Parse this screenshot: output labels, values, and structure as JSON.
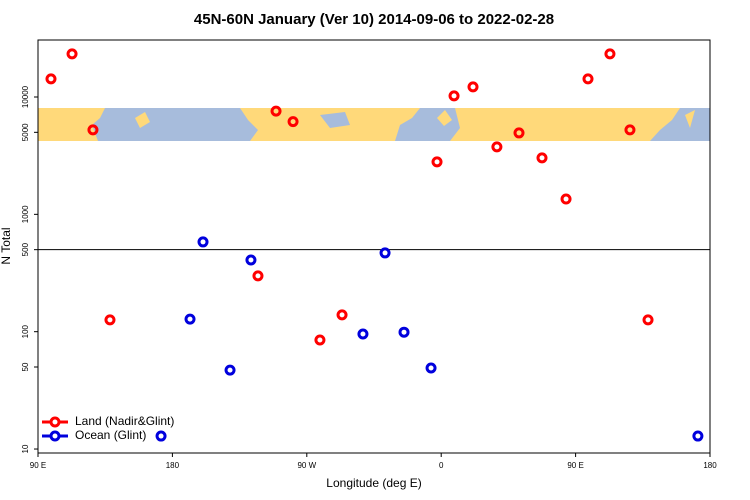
{
  "chart_data": {
    "type": "scatter",
    "title": "45N-60N January (Ver 10)   2014-09-06 to 2022-02-28",
    "x_label": "Longitude (deg E)",
    "y_label": "N Total",
    "xlim": [
      90,
      540
    ],
    "xticks": [
      {
        "value": 90,
        "label": "90 E"
      },
      {
        "value": 180,
        "label": "180"
      },
      {
        "value": 270,
        "label": "90 W"
      },
      {
        "value": 360,
        "label": "0"
      },
      {
        "value": 450,
        "label": "90 E"
      },
      {
        "value": 540,
        "label": "180"
      }
    ],
    "ylim": [
      9.25,
      30600
    ],
    "yticks": [
      10,
      50,
      100,
      500,
      1000,
      5000,
      10000
    ],
    "y_log": true,
    "hline": 500,
    "legend": "bottom-left",
    "series": [
      {
        "name": "Land (Nadir&Glint)",
        "color": "#ff0000",
        "x": [
          98.7,
          112.8,
          126.8,
          138.2,
          249.4,
          260.8,
          237.3,
          278.8,
          293.6,
          357.2,
          368.6,
          381.3,
          397.3,
          412.1,
          427.5,
          443.6,
          458.3,
          473.0,
          486.4,
          498.5
        ],
        "values": [
          14260,
          23300,
          5250,
          126,
          7580,
          6170,
          299,
          85,
          139,
          2800,
          10230,
          12190,
          3760,
          4940,
          3030,
          1350,
          14260,
          23300,
          5250,
          126
        ]
      },
      {
        "name": "Ocean (Glint)",
        "color": "#0000dd",
        "x": [
          172.4,
          191.8,
          200.5,
          218.6,
          232.6,
          307.6,
          322.4,
          335.1,
          353.2,
          531.9
        ],
        "values": [
          12.9,
          128,
          582,
          47,
          408,
          95.5,
          469,
          99,
          49,
          12.9
        ]
      }
    ]
  }
}
